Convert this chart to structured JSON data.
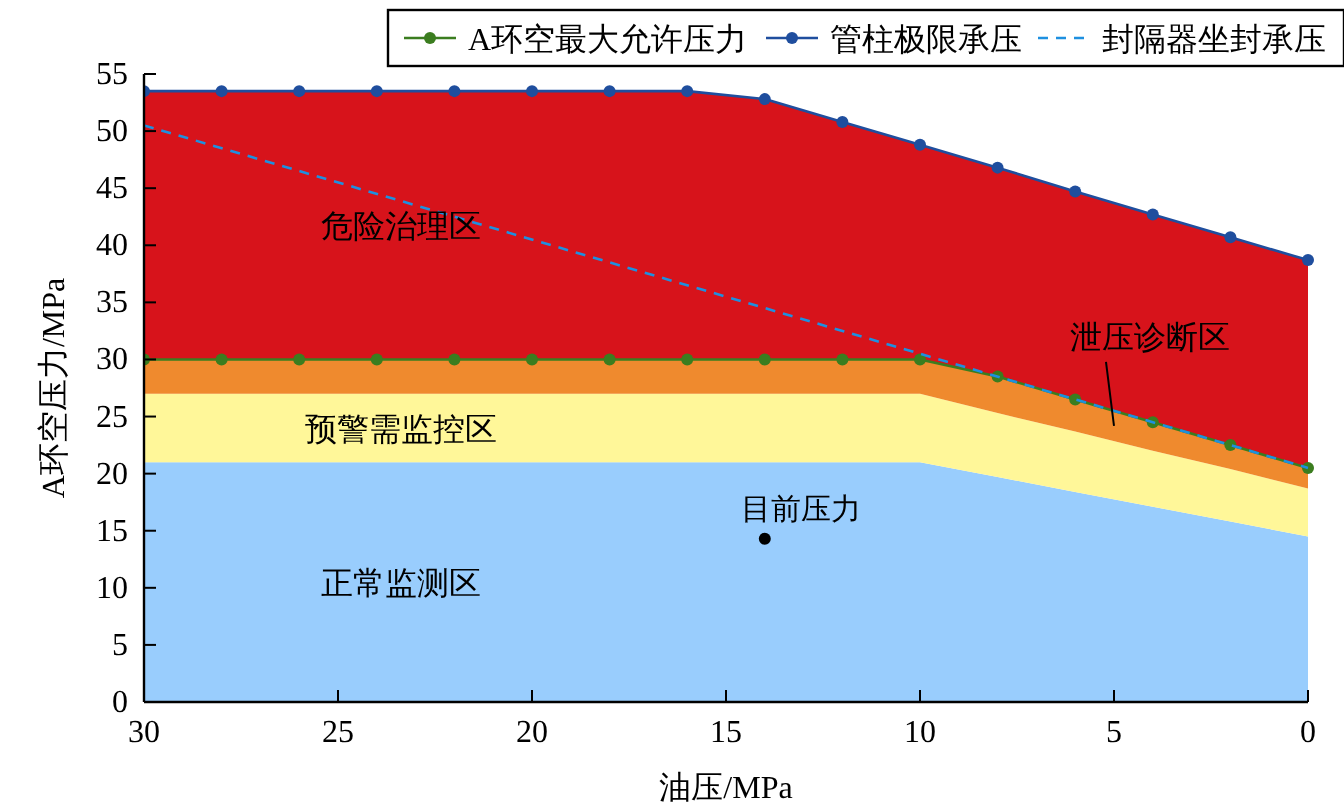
{
  "chart_data": {
    "type": "area",
    "stacked": true,
    "xlabel": "油压/MPa",
    "ylabel": "A环空压力/MPa",
    "xlim": [
      30,
      0
    ],
    "xticks": [
      30,
      25,
      20,
      15,
      10,
      5,
      0
    ],
    "ylim": [
      0,
      55
    ],
    "yticks": [
      0,
      5,
      10,
      15,
      20,
      25,
      30,
      35,
      40,
      45,
      50,
      55
    ],
    "grid": false,
    "legend": "top",
    "x": [
      30,
      28,
      26,
      24,
      22,
      20,
      18,
      16,
      14,
      12,
      10,
      8,
      6,
      4,
      2,
      0
    ],
    "series": [
      {
        "name": "正常监测区",
        "color": "#99cdfd",
        "values": [
          21,
          21,
          21,
          21,
          21,
          21,
          21,
          21,
          21,
          21,
          21,
          19.7,
          18.4,
          17.1,
          15.8,
          14.5
        ]
      },
      {
        "name": "预警需监控区",
        "color": "#fff799",
        "values": [
          6,
          6,
          6,
          6,
          6,
          6,
          6,
          6,
          6,
          6,
          6,
          5.6,
          5.3,
          4.9,
          4.6,
          4.2
        ]
      },
      {
        "name": "泄压诊断区",
        "color": "#ef8a2e",
        "values": [
          3,
          3,
          3,
          3,
          3,
          3,
          3,
          3,
          3,
          3,
          3,
          3.2,
          2.8,
          2.5,
          2.1,
          1.8
        ]
      },
      {
        "name": "危险治理区",
        "color": "#d7131b",
        "values": [
          23.5,
          23.5,
          23.5,
          23.5,
          23.5,
          23.5,
          23.5,
          23.5,
          22.8,
          20.8,
          18.8,
          18.3,
          18.2,
          18.2,
          18.2,
          18.2
        ]
      },
      {
        "type": "line",
        "name": "A环空最大允许压力",
        "color": "#3b7d1f",
        "marker": "circle",
        "x": [
          30,
          28,
          26,
          24,
          22,
          20,
          18,
          16,
          14,
          12,
          10,
          8,
          6,
          4,
          2,
          0
        ],
        "values": [
          30,
          30,
          30,
          30,
          30,
          30,
          30,
          30,
          30,
          30,
          30,
          28.5,
          26.5,
          24.5,
          22.5,
          20.5
        ]
      },
      {
        "type": "line",
        "name": "管柱极限承压",
        "color": "#1f4e9e",
        "marker": "circle",
        "x": [
          30,
          28,
          26,
          24,
          22,
          20,
          18,
          16,
          14,
          12,
          10,
          8,
          6,
          4,
          2,
          0
        ],
        "values": [
          53.5,
          53.5,
          53.5,
          53.5,
          53.5,
          53.5,
          53.5,
          53.5,
          52.8,
          50.8,
          48.8,
          46.8,
          44.7,
          42.7,
          40.7,
          38.7
        ]
      },
      {
        "type": "line",
        "name": "封隔器坐封承压",
        "color": "#1e90e0",
        "marker": "none",
        "line_style": "dashed",
        "x": [
          30,
          0
        ],
        "values": [
          50.5,
          20.5
        ]
      },
      {
        "type": "scatter",
        "name": "目前压力",
        "color": "#000000",
        "marker": "circle",
        "x": [
          14
        ],
        "values": [
          14.3
        ]
      }
    ]
  }
}
